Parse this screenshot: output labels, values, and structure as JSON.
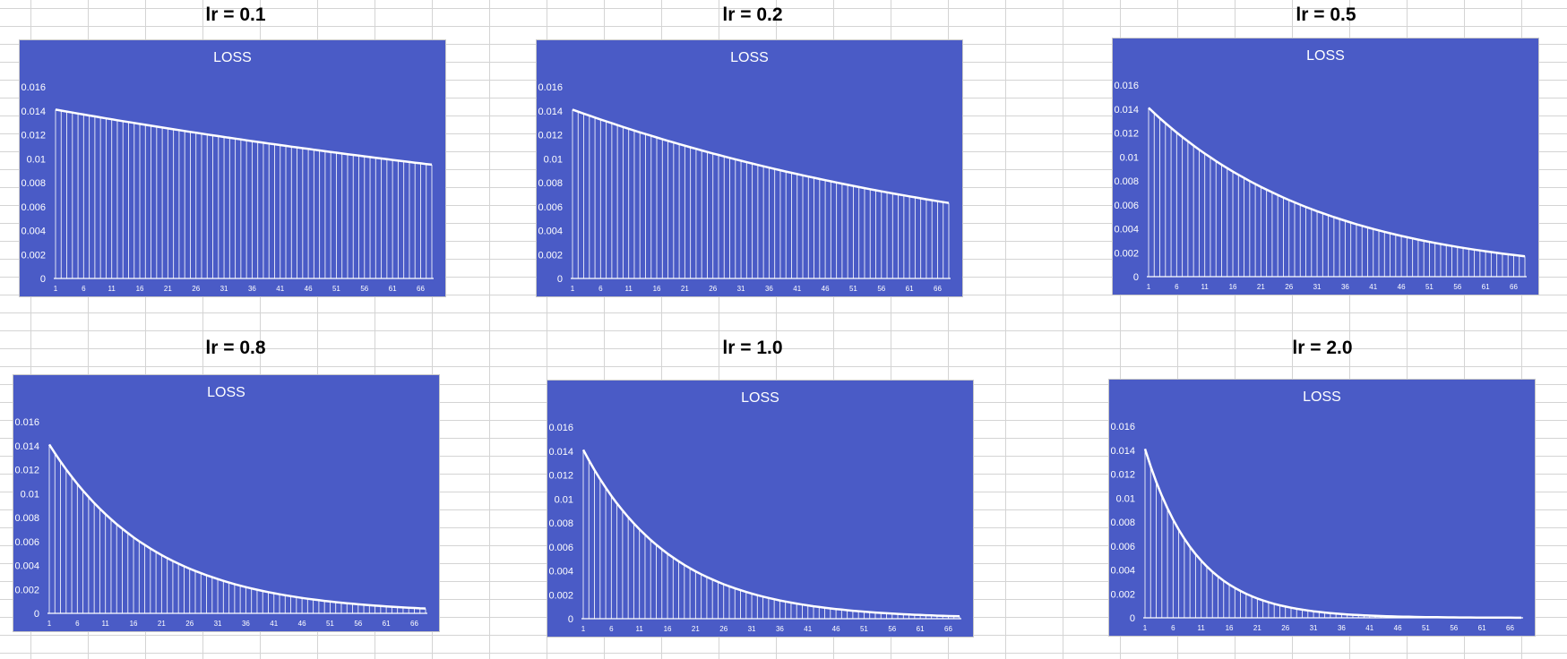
{
  "colors": {
    "plot_bg": "#4a5bc6",
    "mark": "#ffffff"
  },
  "chart_data": [
    {
      "panel_title": "lr = 0.1",
      "title": "LOSS",
      "type": "line",
      "ylim": [
        0,
        0.016
      ],
      "y_ticks": [
        "0.016",
        "0.014",
        "0.012",
        "0.01",
        "0.008",
        "0.006",
        "0.004",
        "0.002",
        "0"
      ],
      "x_ticks": [
        1,
        6,
        11,
        16,
        21,
        26,
        31,
        36,
        41,
        46,
        51,
        56,
        61,
        66
      ],
      "series": [
        {
          "x_start": 1,
          "x_end": 68,
          "y_start": 0.0141,
          "y_end": 0.0095
        }
      ],
      "grid": false,
      "legend": "none"
    },
    {
      "panel_title": "lr = 0.2",
      "title": "LOSS",
      "type": "line",
      "ylim": [
        0,
        0.016
      ],
      "y_ticks": [
        "0.016",
        "0.014",
        "0.012",
        "0.01",
        "0.008",
        "0.006",
        "0.004",
        "0.002",
        "0"
      ],
      "x_ticks": [
        1,
        6,
        11,
        16,
        21,
        26,
        31,
        36,
        41,
        46,
        51,
        56,
        61,
        66
      ],
      "series": [
        {
          "x_start": 1,
          "x_end": 68,
          "y_start": 0.0141,
          "y_end": 0.0063
        }
      ],
      "grid": false,
      "legend": "none"
    },
    {
      "panel_title": "lr = 0.5",
      "title": "LOSS",
      "type": "line",
      "ylim": [
        0,
        0.016
      ],
      "y_ticks": [
        "0.016",
        "0.014",
        "0.012",
        "0.01",
        "0.008",
        "0.006",
        "0.004",
        "0.002",
        "0"
      ],
      "x_ticks": [
        1,
        6,
        11,
        16,
        21,
        26,
        31,
        36,
        41,
        46,
        51,
        56,
        61,
        66
      ],
      "series": [
        {
          "x_start": 1,
          "x_end": 68,
          "y_start": 0.0141,
          "y_end": 0.0017
        }
      ],
      "grid": false,
      "legend": "none"
    },
    {
      "panel_title": "lr = 0.8",
      "title": "LOSS",
      "type": "line",
      "ylim": [
        0,
        0.016
      ],
      "y_ticks": [
        "0.016",
        "0.014",
        "0.012",
        "0.01",
        "0.008",
        "0.006",
        "0.004",
        "0.002",
        "0"
      ],
      "x_ticks": [
        1,
        6,
        11,
        16,
        21,
        26,
        31,
        36,
        41,
        46,
        51,
        56,
        61,
        66
      ],
      "series": [
        {
          "x_start": 1,
          "x_end": 68,
          "y_start": 0.0141,
          "y_end": 0.0004
        }
      ],
      "grid": false,
      "legend": "none"
    },
    {
      "panel_title": "lr = 1.0",
      "title": "LOSS",
      "type": "line",
      "ylim": [
        0,
        0.016
      ],
      "y_ticks": [
        "0.016",
        "0.014",
        "0.012",
        "0.01",
        "0.008",
        "0.006",
        "0.004",
        "0.002",
        "0"
      ],
      "x_ticks": [
        1,
        6,
        11,
        16,
        21,
        26,
        31,
        36,
        41,
        46,
        51,
        56,
        61,
        66
      ],
      "series": [
        {
          "x_start": 1,
          "x_end": 68,
          "y_start": 0.0141,
          "y_end": 0.0002
        }
      ],
      "grid": false,
      "legend": "none"
    },
    {
      "panel_title": "lr = 2.0",
      "title": "LOSS",
      "type": "line",
      "ylim": [
        0,
        0.016
      ],
      "y_ticks": [
        "0.016",
        "0.014",
        "0.012",
        "0.01",
        "0.008",
        "0.006",
        "0.004",
        "0.002",
        "0"
      ],
      "x_ticks": [
        1,
        6,
        11,
        16,
        21,
        26,
        31,
        36,
        41,
        46,
        51,
        56,
        61,
        66
      ],
      "series": [
        {
          "x_start": 1,
          "x_end": 68,
          "y_start": 0.0141,
          "y_end": 1e-05
        }
      ],
      "grid": false,
      "legend": "none"
    }
  ]
}
